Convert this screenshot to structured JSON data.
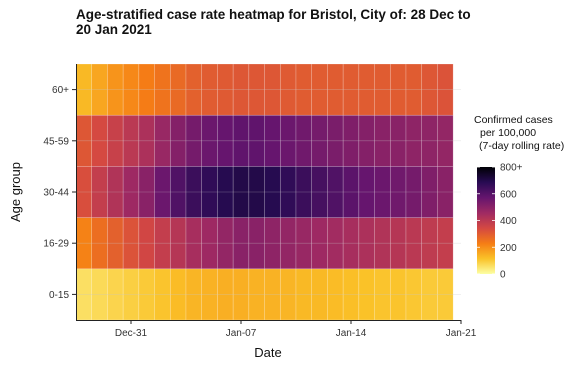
{
  "chart_data": {
    "type": "heatmap",
    "title_lines": [
      "Age-stratified case rate heatmap for Bristol, City of: 28 Dec to",
      "20 Jan 2021"
    ],
    "xlabel": "Date",
    "ylabel": "Age group",
    "x_start": "2020-12-28",
    "x_end": "2021-01-20",
    "x_ticks": [
      "Dec-31",
      "Jan-07",
      "Jan-14",
      "Jan-21"
    ],
    "x_tick_dates": [
      "2020-12-31",
      "2021-01-07",
      "2021-01-14",
      "2021-01-21"
    ],
    "x_dates": [
      "2020-12-28",
      "2020-12-29",
      "2020-12-30",
      "2020-12-31",
      "2021-01-01",
      "2021-01-02",
      "2021-01-03",
      "2021-01-04",
      "2021-01-05",
      "2021-01-06",
      "2021-01-07",
      "2021-01-08",
      "2021-01-09",
      "2021-01-10",
      "2021-01-11",
      "2021-01-12",
      "2021-01-13",
      "2021-01-14",
      "2021-01-15",
      "2021-01-16",
      "2021-01-17",
      "2021-01-18",
      "2021-01-19",
      "2021-01-20"
    ],
    "age_groups": [
      "0-15",
      "16-29",
      "30-44",
      "45-59",
      "60+"
    ],
    "values": [
      [
        60,
        70,
        80,
        90,
        100,
        110,
        125,
        135,
        140,
        145,
        145,
        140,
        140,
        135,
        130,
        130,
        125,
        120,
        115,
        110,
        110,
        105,
        100,
        100
      ],
      [
        220,
        260,
        290,
        320,
        350,
        380,
        410,
        440,
        460,
        480,
        500,
        500,
        490,
        480,
        470,
        460,
        450,
        440,
        430,
        420,
        410,
        400,
        390,
        380
      ],
      [
        330,
        380,
        420,
        460,
        500,
        560,
        610,
        650,
        670,
        690,
        700,
        700,
        690,
        670,
        650,
        630,
        610,
        590,
        570,
        560,
        550,
        540,
        520,
        500
      ],
      [
        310,
        340,
        370,
        400,
        430,
        470,
        510,
        540,
        560,
        570,
        580,
        580,
        570,
        560,
        550,
        540,
        530,
        520,
        510,
        500,
        500,
        490,
        490,
        480
      ],
      [
        130,
        160,
        190,
        210,
        230,
        250,
        270,
        290,
        300,
        305,
        310,
        310,
        310,
        305,
        300,
        300,
        300,
        300,
        300,
        300,
        300,
        300,
        310,
        320
      ]
    ],
    "colorbar": {
      "title_lines": [
        "Confirmed cases",
        "per 100,000",
        "(7-day rolling rate)"
      ],
      "ticks": [
        0,
        200,
        400,
        600,
        800
      ],
      "tick_labels": [
        "0",
        "200",
        "400",
        "600",
        "800+"
      ],
      "range": [
        0,
        800
      ],
      "palette": [
        "#fcffa4",
        "#fac228",
        "#f57d15",
        "#d44842",
        "#9f2a63",
        "#65156e",
        "#280b53",
        "#000004"
      ]
    },
    "grid": true,
    "legend_position": "right"
  }
}
